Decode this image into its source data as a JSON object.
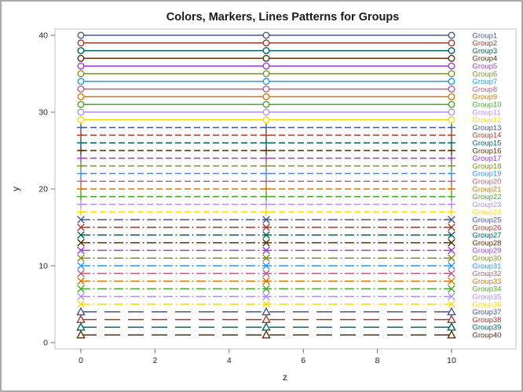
{
  "chart_data": {
    "type": "line",
    "title": "Colors, Markers, Lines Patterns for Groups",
    "xlabel": "z",
    "ylabel": "y",
    "x_range": [
      0,
      10
    ],
    "y_range": [
      0,
      40
    ],
    "x_ticks": [
      0,
      2,
      4,
      6,
      8,
      10
    ],
    "y_ticks": [
      0,
      10,
      20,
      30,
      40
    ],
    "marker_x": [
      0,
      5,
      10
    ],
    "grid": "off",
    "legend_position": "right-inline-labels",
    "colors": {
      "frame": "#bfc2c5",
      "tick": "#6b6b6b",
      "marker_fill": "#ffffff"
    },
    "patterns": {
      "solid": "",
      "dash": "8,4",
      "dash-dot": "12,3.5,2,3.5",
      "long-dash": "20,10"
    },
    "series": [
      {
        "label": "Group1",
        "y": 40,
        "color": "#445694",
        "marker": "circle",
        "pattern": "solid"
      },
      {
        "label": "Group2",
        "y": 39,
        "color": "#A23A2E",
        "marker": "circle",
        "pattern": "solid"
      },
      {
        "label": "Group3",
        "y": 38,
        "color": "#01665E",
        "marker": "circle",
        "pattern": "solid"
      },
      {
        "label": "Group4",
        "y": 37,
        "color": "#543005",
        "marker": "circle",
        "pattern": "solid"
      },
      {
        "label": "Group5",
        "y": 36,
        "color": "#9D3CDB",
        "marker": "circle",
        "pattern": "solid"
      },
      {
        "label": "Group6",
        "y": 35,
        "color": "#7F8E1F",
        "marker": "circle",
        "pattern": "solid"
      },
      {
        "label": "Group7",
        "y": 34,
        "color": "#2597FA",
        "marker": "circle",
        "pattern": "solid"
      },
      {
        "label": "Group8",
        "y": 33,
        "color": "#B26084",
        "marker": "circle",
        "pattern": "solid"
      },
      {
        "label": "Group9",
        "y": 32,
        "color": "#D17800",
        "marker": "circle",
        "pattern": "solid"
      },
      {
        "label": "Group10",
        "y": 31,
        "color": "#47A82A",
        "marker": "circle",
        "pattern": "solid"
      },
      {
        "label": "Group11",
        "y": 30,
        "color": "#B38EF3",
        "marker": "circle",
        "pattern": "solid"
      },
      {
        "label": "Group12",
        "y": 29,
        "color": "#F9DA04",
        "marker": "circle",
        "pattern": "solid"
      },
      {
        "label": "Group13",
        "y": 28,
        "color": "#445694",
        "marker": "plus",
        "pattern": "dash"
      },
      {
        "label": "Group14",
        "y": 27,
        "color": "#A23A2E",
        "marker": "plus",
        "pattern": "dash"
      },
      {
        "label": "Group15",
        "y": 26,
        "color": "#01665E",
        "marker": "plus",
        "pattern": "dash"
      },
      {
        "label": "Group16",
        "y": 25,
        "color": "#543005",
        "marker": "plus",
        "pattern": "dash"
      },
      {
        "label": "Group17",
        "y": 24,
        "color": "#9D3CDB",
        "marker": "plus",
        "pattern": "dash"
      },
      {
        "label": "Group18",
        "y": 23,
        "color": "#7F8E1F",
        "marker": "plus",
        "pattern": "dash"
      },
      {
        "label": "Group19",
        "y": 22,
        "color": "#2597FA",
        "marker": "plus",
        "pattern": "dash"
      },
      {
        "label": "Group20",
        "y": 21,
        "color": "#B26084",
        "marker": "plus",
        "pattern": "dash"
      },
      {
        "label": "Group21",
        "y": 20,
        "color": "#D17800",
        "marker": "plus",
        "pattern": "dash"
      },
      {
        "label": "Group22",
        "y": 19,
        "color": "#47A82A",
        "marker": "plus",
        "pattern": "dash"
      },
      {
        "label": "Group23",
        "y": 18,
        "color": "#B38EF3",
        "marker": "plus",
        "pattern": "dash"
      },
      {
        "label": "Group24",
        "y": 17,
        "color": "#F9DA04",
        "marker": "plus",
        "pattern": "dash"
      },
      {
        "label": "Group25",
        "y": 16,
        "color": "#445694",
        "marker": "x",
        "pattern": "dash-dot"
      },
      {
        "label": "Group26",
        "y": 15,
        "color": "#A23A2E",
        "marker": "x",
        "pattern": "dash-dot"
      },
      {
        "label": "Group27",
        "y": 14,
        "color": "#01665E",
        "marker": "x",
        "pattern": "dash-dot"
      },
      {
        "label": "Group28",
        "y": 13,
        "color": "#543005",
        "marker": "x",
        "pattern": "dash-dot"
      },
      {
        "label": "Group29",
        "y": 12,
        "color": "#9D3CDB",
        "marker": "x",
        "pattern": "dash-dot"
      },
      {
        "label": "Group30",
        "y": 11,
        "color": "#7F8E1F",
        "marker": "x",
        "pattern": "dash-dot"
      },
      {
        "label": "Group31",
        "y": 10,
        "color": "#2597FA",
        "marker": "x",
        "pattern": "dash-dot"
      },
      {
        "label": "Group32",
        "y": 9,
        "color": "#B26084",
        "marker": "x",
        "pattern": "dash-dot"
      },
      {
        "label": "Group33",
        "y": 8,
        "color": "#D17800",
        "marker": "x",
        "pattern": "dash-dot"
      },
      {
        "label": "Group34",
        "y": 7,
        "color": "#47A82A",
        "marker": "x",
        "pattern": "dash-dot"
      },
      {
        "label": "Group35",
        "y": 6,
        "color": "#B38EF3",
        "marker": "x",
        "pattern": "dash-dot"
      },
      {
        "label": "Group36",
        "y": 5,
        "color": "#F9DA04",
        "marker": "x",
        "pattern": "dash-dot"
      },
      {
        "label": "Group37",
        "y": 4,
        "color": "#445694",
        "marker": "triangle",
        "pattern": "long-dash"
      },
      {
        "label": "Group38",
        "y": 3,
        "color": "#A23A2E",
        "marker": "triangle",
        "pattern": "long-dash"
      },
      {
        "label": "Group39",
        "y": 2,
        "color": "#01665E",
        "marker": "triangle",
        "pattern": "long-dash"
      },
      {
        "label": "Group40",
        "y": 1,
        "color": "#543005",
        "marker": "triangle",
        "pattern": "long-dash"
      }
    ]
  }
}
